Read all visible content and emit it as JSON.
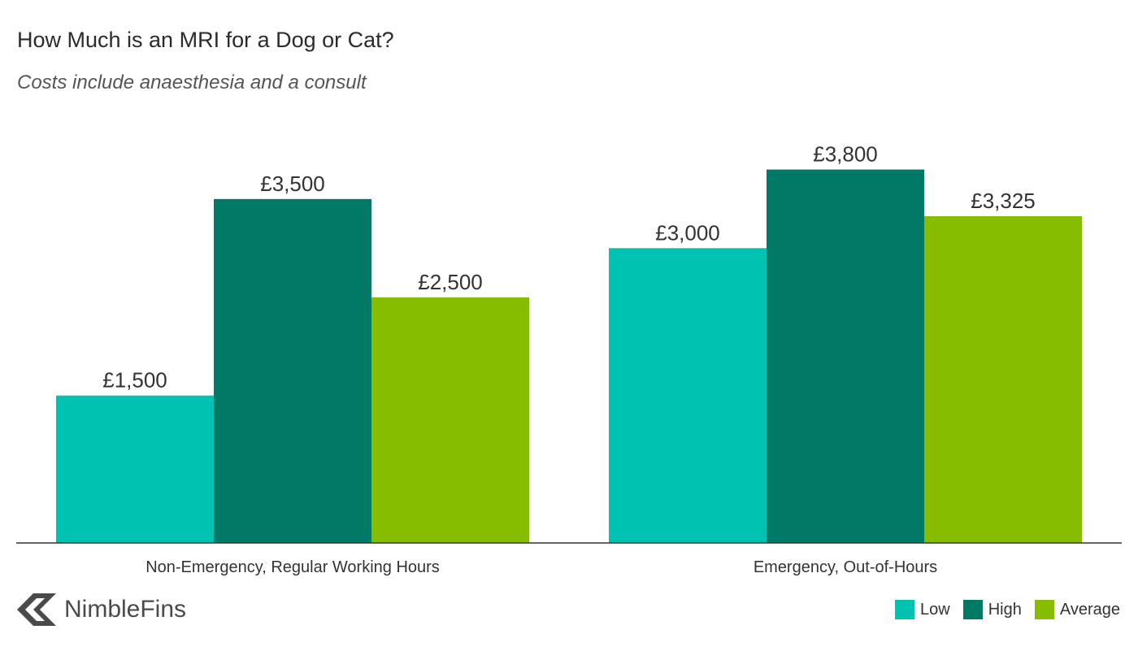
{
  "title": "How Much is an MRI for a Dog or Cat?",
  "subtitle": "Costs include anaesthesia and a consult",
  "brand": {
    "name": "NimbleFins",
    "logo_icon": "nimblefins-chevron-logo-icon"
  },
  "chart_data": {
    "type": "bar",
    "title": "How Much is an MRI for a Dog or Cat?",
    "subtitle": "Costs include anaesthesia and a consult",
    "categories": [
      "Non-Emergency, Regular Working Hours",
      "Emergency, Out-of-Hours"
    ],
    "series": [
      {
        "name": "Low",
        "color": "#00c2b0",
        "values": [
          1500,
          3000
        ],
        "labels": [
          "£1,500",
          "£3,000"
        ]
      },
      {
        "name": "High",
        "color": "#007a66",
        "values": [
          3500,
          3800
        ],
        "labels": [
          "£3,500",
          "£3,800"
        ]
      },
      {
        "name": "Average",
        "color": "#87bd00",
        "values": [
          2500,
          3325
        ],
        "labels": [
          "£2,500",
          "£3,325"
        ]
      }
    ],
    "ylim": [
      0,
      4450
    ],
    "grid": false,
    "y_axis_shown": false,
    "legend_position": "bottom-right"
  }
}
